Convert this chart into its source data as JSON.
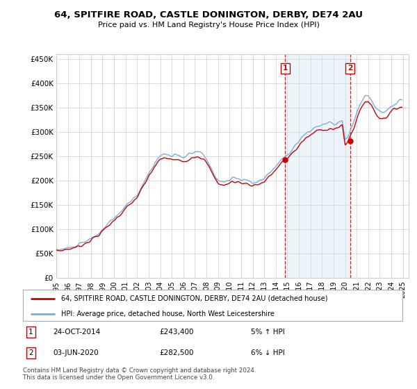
{
  "title": "64, SPITFIRE ROAD, CASTLE DONINGTON, DERBY, DE74 2AU",
  "subtitle": "Price paid vs. HM Land Registry's House Price Index (HPI)",
  "ylabel_ticks": [
    "£0",
    "£50K",
    "£100K",
    "£150K",
    "£200K",
    "£250K",
    "£300K",
    "£350K",
    "£400K",
    "£450K"
  ],
  "ytick_values": [
    0,
    50000,
    100000,
    150000,
    200000,
    250000,
    300000,
    350000,
    400000,
    450000
  ],
  "ylim": [
    0,
    460000
  ],
  "xlim_start": 1995.0,
  "xlim_end": 2025.5,
  "years": [
    1995,
    1996,
    1997,
    1998,
    1999,
    2000,
    2001,
    2002,
    2003,
    2004,
    2005,
    2006,
    2007,
    2008,
    2009,
    2010,
    2011,
    2012,
    2013,
    2014,
    2015,
    2016,
    2017,
    2018,
    2019,
    2020,
    2021,
    2022,
    2023,
    2024,
    2025
  ],
  "hpi_x": [
    1995.0,
    1995.08,
    1995.17,
    1995.25,
    1995.33,
    1995.42,
    1995.5,
    1995.58,
    1995.67,
    1995.75,
    1995.83,
    1995.92,
    1996.0,
    1996.08,
    1996.17,
    1996.25,
    1996.33,
    1996.42,
    1996.5,
    1996.58,
    1996.67,
    1996.75,
    1996.83,
    1996.92,
    1997.0,
    1997.08,
    1997.17,
    1997.25,
    1997.33,
    1997.42,
    1997.5,
    1997.58,
    1997.67,
    1997.75,
    1997.83,
    1997.92,
    1998.0,
    1998.08,
    1998.17,
    1998.25,
    1998.33,
    1998.42,
    1998.5,
    1998.58,
    1998.67,
    1998.75,
    1998.83,
    1998.92,
    1999.0,
    1999.08,
    1999.17,
    1999.25,
    1999.33,
    1999.42,
    1999.5,
    1999.58,
    1999.67,
    1999.75,
    1999.83,
    1999.92,
    2000.0,
    2000.08,
    2000.17,
    2000.25,
    2000.33,
    2000.42,
    2000.5,
    2000.58,
    2000.67,
    2000.75,
    2000.83,
    2000.92,
    2001.0,
    2001.08,
    2001.17,
    2001.25,
    2001.33,
    2001.42,
    2001.5,
    2001.58,
    2001.67,
    2001.75,
    2001.83,
    2001.92,
    2002.0,
    2002.08,
    2002.17,
    2002.25,
    2002.33,
    2002.42,
    2002.5,
    2002.58,
    2002.67,
    2002.75,
    2002.83,
    2002.92,
    2003.0,
    2003.08,
    2003.17,
    2003.25,
    2003.33,
    2003.42,
    2003.5,
    2003.58,
    2003.67,
    2003.75,
    2003.83,
    2003.92,
    2004.0,
    2004.08,
    2004.17,
    2004.25,
    2004.33,
    2004.42,
    2004.5,
    2004.58,
    2004.67,
    2004.75,
    2004.83,
    2004.92,
    2005.0,
    2005.08,
    2005.17,
    2005.25,
    2005.33,
    2005.42,
    2005.5,
    2005.58,
    2005.67,
    2005.75,
    2005.83,
    2005.92,
    2006.0,
    2006.08,
    2006.17,
    2006.25,
    2006.33,
    2006.42,
    2006.5,
    2006.58,
    2006.67,
    2006.75,
    2006.83,
    2006.92,
    2007.0,
    2007.08,
    2007.17,
    2007.25,
    2007.33,
    2007.42,
    2007.5,
    2007.58,
    2007.67,
    2007.75,
    2007.83,
    2007.92,
    2008.0,
    2008.08,
    2008.17,
    2008.25,
    2008.33,
    2008.42,
    2008.5,
    2008.58,
    2008.67,
    2008.75,
    2008.83,
    2008.92,
    2009.0,
    2009.08,
    2009.17,
    2009.25,
    2009.33,
    2009.42,
    2009.5,
    2009.58,
    2009.67,
    2009.75,
    2009.83,
    2009.92,
    2010.0,
    2010.08,
    2010.17,
    2010.25,
    2010.33,
    2010.42,
    2010.5,
    2010.58,
    2010.67,
    2010.75,
    2010.83,
    2010.92,
    2011.0,
    2011.08,
    2011.17,
    2011.25,
    2011.33,
    2011.42,
    2011.5,
    2011.58,
    2011.67,
    2011.75,
    2011.83,
    2011.92,
    2012.0,
    2012.08,
    2012.17,
    2012.25,
    2012.33,
    2012.42,
    2012.5,
    2012.58,
    2012.67,
    2012.75,
    2012.83,
    2012.92,
    2013.0,
    2013.08,
    2013.17,
    2013.25,
    2013.33,
    2013.42,
    2013.5,
    2013.58,
    2013.67,
    2013.75,
    2013.83,
    2013.92,
    2014.0,
    2014.08,
    2014.17,
    2014.25,
    2014.33,
    2014.42,
    2014.5,
    2014.58,
    2014.67,
    2014.75,
    2014.83,
    2014.92,
    2015.0,
    2015.08,
    2015.17,
    2015.25,
    2015.33,
    2015.42,
    2015.5,
    2015.58,
    2015.67,
    2015.75,
    2015.83,
    2015.92,
    2016.0,
    2016.08,
    2016.17,
    2016.25,
    2016.33,
    2016.42,
    2016.5,
    2016.58,
    2016.67,
    2016.75,
    2016.83,
    2016.92,
    2017.0,
    2017.08,
    2017.17,
    2017.25,
    2017.33,
    2017.42,
    2017.5,
    2017.58,
    2017.67,
    2017.75,
    2017.83,
    2017.92,
    2018.0,
    2018.08,
    2018.17,
    2018.25,
    2018.33,
    2018.42,
    2018.5,
    2018.58,
    2018.67,
    2018.75,
    2018.83,
    2018.92,
    2019.0,
    2019.08,
    2019.17,
    2019.25,
    2019.33,
    2019.42,
    2019.5,
    2019.58,
    2019.67,
    2019.75,
    2019.83,
    2019.92,
    2020.0,
    2020.08,
    2020.17,
    2020.25,
    2020.33,
    2020.42,
    2020.5,
    2020.58,
    2020.67,
    2020.75,
    2020.83,
    2020.92,
    2021.0,
    2021.08,
    2021.17,
    2021.25,
    2021.33,
    2021.42,
    2021.5,
    2021.58,
    2021.67,
    2021.75,
    2021.83,
    2021.92,
    2022.0,
    2022.08,
    2022.17,
    2022.25,
    2022.33,
    2022.42,
    2022.5,
    2022.58,
    2022.67,
    2022.75,
    2022.83,
    2022.92,
    2023.0,
    2023.08,
    2023.17,
    2023.25,
    2023.33,
    2023.42,
    2023.5,
    2023.58,
    2023.67,
    2023.75,
    2023.83,
    2023.92,
    2024.0,
    2024.08,
    2024.17,
    2024.25,
    2024.33,
    2024.42,
    2024.5,
    2024.58,
    2024.67,
    2024.75,
    2024.83,
    2024.92
  ],
  "sale1_x": 2014.82,
  "sale1_y": 243400,
  "sale2_x": 2020.42,
  "sale2_y": 282500,
  "vline1_x": 2014.82,
  "vline2_x": 2020.42,
  "shaded_start": 2014.82,
  "shaded_end": 2020.42,
  "legend_line1": "64, SPITFIRE ROAD, CASTLE DONINGTON, DERBY, DE74 2AU (detached house)",
  "legend_line2": "HPI: Average price, detached house, North West Leicestershire",
  "annotation1_num": "1",
  "annotation1_date": "24-OCT-2014",
  "annotation1_price": "£243,400",
  "annotation1_hpi": "5% ↑ HPI",
  "annotation2_num": "2",
  "annotation2_date": "03-JUN-2020",
  "annotation2_price": "£282,500",
  "annotation2_hpi": "6% ↓ HPI",
  "footer": "Contains HM Land Registry data © Crown copyright and database right 2024.\nThis data is licensed under the Open Government Licence v3.0.",
  "price_color": "#cc0000",
  "hpi_color": "#7aaddb",
  "vline_color": "#cc0000",
  "shade_color": "#cce0f0",
  "background_color": "#ffffff",
  "grid_color": "#cccccc"
}
